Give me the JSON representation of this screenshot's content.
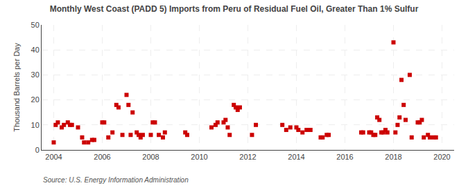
{
  "chart_data": {
    "type": "scatter",
    "title": "Monthly West Coast (PADD 5) Imports from Peru of Residual Fuel Oil, Greater Than 1% Sulfur",
    "ylabel": "Thousand Barrels per Day",
    "source": "Source: U.S. Energy Information Administration",
    "color": "#cc0000",
    "marker": "square",
    "grid": true,
    "xlim": [
      2003.5,
      2020.5
    ],
    "ylim": [
      0,
      50
    ],
    "yticks": [
      0,
      10,
      20,
      30,
      40,
      50
    ],
    "xticks": [
      2004,
      2006,
      2008,
      2010,
      2012,
      2014,
      2016,
      2018,
      2020
    ],
    "x": [
      2004.0,
      2004.08,
      2004.17,
      2004.33,
      2004.42,
      2004.58,
      2004.67,
      2004.75,
      2005.0,
      2005.17,
      2005.25,
      2005.42,
      2005.58,
      2005.67,
      2006.0,
      2006.08,
      2006.25,
      2006.42,
      2006.58,
      2006.67,
      2006.83,
      2007.0,
      2007.08,
      2007.17,
      2007.25,
      2007.42,
      2007.5,
      2007.58,
      2007.67,
      2008.0,
      2008.08,
      2008.17,
      2008.33,
      2008.5,
      2008.58,
      2009.42,
      2009.5,
      2010.5,
      2010.67,
      2010.75,
      2011.0,
      2011.08,
      2011.17,
      2011.25,
      2011.42,
      2011.5,
      2011.58,
      2011.67,
      2012.17,
      2012.33,
      2013.42,
      2013.58,
      2013.75,
      2014.0,
      2014.08,
      2014.25,
      2014.42,
      2014.58,
      2015.0,
      2015.08,
      2015.25,
      2015.33,
      2016.67,
      2016.75,
      2017.0,
      2017.08,
      2017.17,
      2017.25,
      2017.33,
      2017.42,
      2017.5,
      2017.58,
      2017.67,
      2017.75,
      2018.0,
      2018.08,
      2018.17,
      2018.25,
      2018.33,
      2018.42,
      2018.5,
      2018.67,
      2018.75,
      2019.0,
      2019.08,
      2019.17,
      2019.25,
      2019.42,
      2019.5,
      2019.67,
      2019.75
    ],
    "values": [
      3,
      10,
      11,
      9,
      10,
      11,
      10,
      10,
      9,
      5,
      3,
      3,
      4,
      4,
      11,
      11,
      5,
      7,
      18,
      17,
      6,
      22,
      18,
      6,
      15,
      7,
      6,
      5,
      6,
      6,
      11,
      11,
      6,
      5,
      7,
      7,
      6,
      9,
      10,
      11,
      11,
      12,
      9,
      6,
      18,
      17,
      16,
      17,
      6,
      10,
      10,
      8,
      9,
      9,
      8,
      7,
      8,
      8,
      5,
      5,
      6,
      6,
      7,
      7,
      7,
      7,
      6,
      6,
      13,
      12,
      7,
      7,
      8,
      7,
      43,
      7,
      10,
      13,
      28,
      18,
      12,
      30,
      5,
      11,
      11,
      12,
      5,
      6,
      5,
      5,
      5
    ]
  }
}
